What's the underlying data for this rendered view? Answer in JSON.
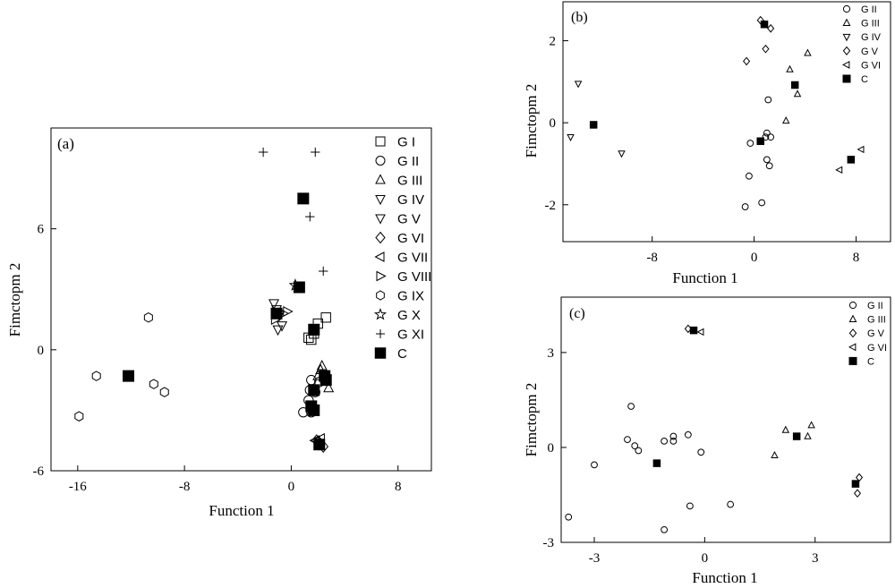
{
  "chart_data": [
    {
      "id": "a",
      "type": "scatter",
      "panel_label": "(a)",
      "xlabel": "Function 1",
      "ylabel": "Fimctopm 2",
      "xlim": [
        -18,
        10.5
      ],
      "ylim": [
        -6,
        11
      ],
      "xticks": [
        -16,
        -8,
        0,
        8
      ],
      "yticks": [
        -6,
        0,
        6
      ],
      "series": [
        {
          "name": "G I",
          "marker": "square",
          "points": [
            [
              1.3,
              0.6
            ],
            [
              1.7,
              0.8
            ],
            [
              2.0,
              1.3
            ],
            [
              2.6,
              1.6
            ],
            [
              1.5,
              0.5
            ]
          ]
        },
        {
          "name": "G II",
          "marker": "circle",
          "points": [
            [
              1.5,
              -1.5
            ],
            [
              2.1,
              -1.6
            ],
            [
              1.3,
              -2.5
            ],
            [
              1.5,
              -3.1
            ],
            [
              0.9,
              -3.1
            ],
            [
              1.8,
              -2.1
            ],
            [
              1.4,
              -2.0
            ]
          ]
        },
        {
          "name": "G III",
          "marker": "triangle-up",
          "points": [
            [
              2.3,
              -0.8
            ],
            [
              2.0,
              -1.3
            ],
            [
              2.8,
              -1.9
            ],
            [
              2.2,
              -1.0
            ]
          ]
        },
        {
          "name": "G IV",
          "marker": "triangle-down",
          "points": [
            [
              -1.0,
              1.0
            ],
            [
              -1.3,
              2.3
            ],
            [
              -0.9,
              1.7
            ]
          ]
        },
        {
          "name": "G V",
          "marker": "triangle-down",
          "points": [
            [
              -0.7,
              1.2
            ],
            [
              -1.1,
              2.0
            ]
          ]
        },
        {
          "name": "G VI",
          "marker": "diamond",
          "points": [
            [
              2.1,
              -4.6
            ],
            [
              2.4,
              -4.8
            ],
            [
              1.9,
              -4.5
            ]
          ]
        },
        {
          "name": "G VII",
          "marker": "triangle-left",
          "points": [
            [
              1.8,
              -4.5
            ],
            [
              2.2,
              -4.4
            ]
          ]
        },
        {
          "name": "G VIII",
          "marker": "triangle-right",
          "points": [
            [
              -0.6,
              1.8
            ],
            [
              -0.3,
              1.9
            ],
            [
              -1.2,
              1.5
            ]
          ]
        },
        {
          "name": "G IX",
          "marker": "hexagon",
          "points": [
            [
              -10.7,
              1.6
            ],
            [
              -14.6,
              -1.3
            ],
            [
              -10.3,
              -1.7
            ],
            [
              -9.5,
              -2.1
            ],
            [
              -15.9,
              -3.3
            ]
          ]
        },
        {
          "name": "G X",
          "marker": "star",
          "points": [
            [
              0.3,
              3.2
            ]
          ]
        },
        {
          "name": "G XI",
          "marker": "plus",
          "points": [
            [
              -2.1,
              9.8
            ],
            [
              1.8,
              9.8
            ],
            [
              1.4,
              6.6
            ],
            [
              2.4,
              3.9
            ]
          ]
        },
        {
          "name": "C",
          "marker": "filled-square",
          "points": [
            [
              -12.2,
              -1.3
            ],
            [
              0.9,
              7.5
            ],
            [
              0.6,
              3.1
            ],
            [
              -1.1,
              1.8
            ],
            [
              1.7,
              1.0
            ],
            [
              1.7,
              -2.0
            ],
            [
              2.6,
              -1.5
            ],
            [
              2.5,
              -1.3
            ],
            [
              1.5,
              -2.8
            ],
            [
              1.7,
              -3.0
            ],
            [
              2.1,
              -4.7
            ]
          ]
        }
      ]
    },
    {
      "id": "b",
      "type": "scatter",
      "panel_label": "(b)",
      "xlabel": "Function 1",
      "ylabel": "Fimctopm 2",
      "xlim": [
        -15,
        10.7
      ],
      "ylim": [
        -2.9,
        2.95
      ],
      "xticks": [
        -8,
        0,
        8
      ],
      "yticks": [
        -2,
        0,
        2
      ],
      "series": [
        {
          "name": "G II",
          "marker": "circle",
          "points": [
            [
              1.1,
              0.56
            ],
            [
              0.9,
              -0.35
            ],
            [
              1.0,
              -0.25
            ],
            [
              1.3,
              -0.35
            ],
            [
              1.0,
              -0.9
            ],
            [
              1.2,
              -1.05
            ],
            [
              -0.3,
              -0.5
            ],
            [
              -0.4,
              -1.3
            ],
            [
              0.6,
              -1.95
            ],
            [
              -0.7,
              -2.05
            ]
          ]
        },
        {
          "name": "G III",
          "marker": "triangle-up",
          "points": [
            [
              2.8,
              1.3
            ],
            [
              4.2,
              1.7
            ],
            [
              3.4,
              0.7
            ],
            [
              2.5,
              0.05
            ]
          ]
        },
        {
          "name": "G IV",
          "marker": "triangle-down",
          "points": [
            [
              -13.8,
              0.95
            ],
            [
              -14.4,
              -0.35
            ],
            [
              -10.4,
              -0.75
            ]
          ]
        },
        {
          "name": "G V",
          "marker": "diamond",
          "points": [
            [
              0.5,
              2.5
            ],
            [
              1.3,
              2.3
            ],
            [
              0.9,
              1.8
            ],
            [
              -0.6,
              1.5
            ]
          ]
        },
        {
          "name": "G VI",
          "marker": "triangle-left",
          "points": [
            [
              8.4,
              -0.65
            ],
            [
              6.7,
              -1.15
            ]
          ]
        },
        {
          "name": "C",
          "marker": "filled-square",
          "points": [
            [
              -12.6,
              -0.05
            ],
            [
              0.8,
              2.4
            ],
            [
              3.2,
              0.92
            ],
            [
              0.5,
              -0.45
            ],
            [
              7.6,
              -0.9
            ]
          ]
        }
      ]
    },
    {
      "id": "c",
      "type": "scatter",
      "panel_label": "(c)",
      "xlabel": "Function 1",
      "ylabel": "Fimctopm 2",
      "xlim": [
        -3.9,
        5.05
      ],
      "ylim": [
        -3,
        4.75
      ],
      "xticks": [
        -3,
        0,
        3
      ],
      "yticks": [
        -3,
        0,
        3
      ],
      "series": [
        {
          "name": "G II",
          "marker": "circle",
          "points": [
            [
              -2.0,
              1.3
            ],
            [
              -2.1,
              0.25
            ],
            [
              -1.9,
              0.05
            ],
            [
              -1.8,
              -0.1
            ],
            [
              -1.1,
              0.2
            ],
            [
              -0.85,
              0.2
            ],
            [
              -0.85,
              0.35
            ],
            [
              -0.45,
              0.4
            ],
            [
              -0.1,
              -0.15
            ],
            [
              -3.0,
              -0.55
            ],
            [
              -3.7,
              -2.2
            ],
            [
              -0.4,
              -1.85
            ],
            [
              0.7,
              -1.8
            ],
            [
              -1.1,
              -2.6
            ]
          ]
        },
        {
          "name": "G III",
          "marker": "triangle-up",
          "points": [
            [
              2.2,
              0.55
            ],
            [
              2.9,
              0.7
            ],
            [
              2.8,
              0.35
            ],
            [
              1.9,
              -0.25
            ]
          ]
        },
        {
          "name": "G V",
          "marker": "diamond",
          "points": [
            [
              -0.45,
              3.75
            ],
            [
              4.2,
              -0.95
            ],
            [
              4.15,
              -1.45
            ]
          ]
        },
        {
          "name": "G VI",
          "marker": "triangle-left",
          "points": [
            [
              -0.1,
              3.65
            ]
          ]
        },
        {
          "name": "C",
          "marker": "filled-square",
          "points": [
            [
              -0.3,
              3.7
            ],
            [
              -1.3,
              -0.5
            ],
            [
              2.5,
              0.35
            ],
            [
              4.1,
              -1.15
            ]
          ]
        }
      ]
    }
  ]
}
